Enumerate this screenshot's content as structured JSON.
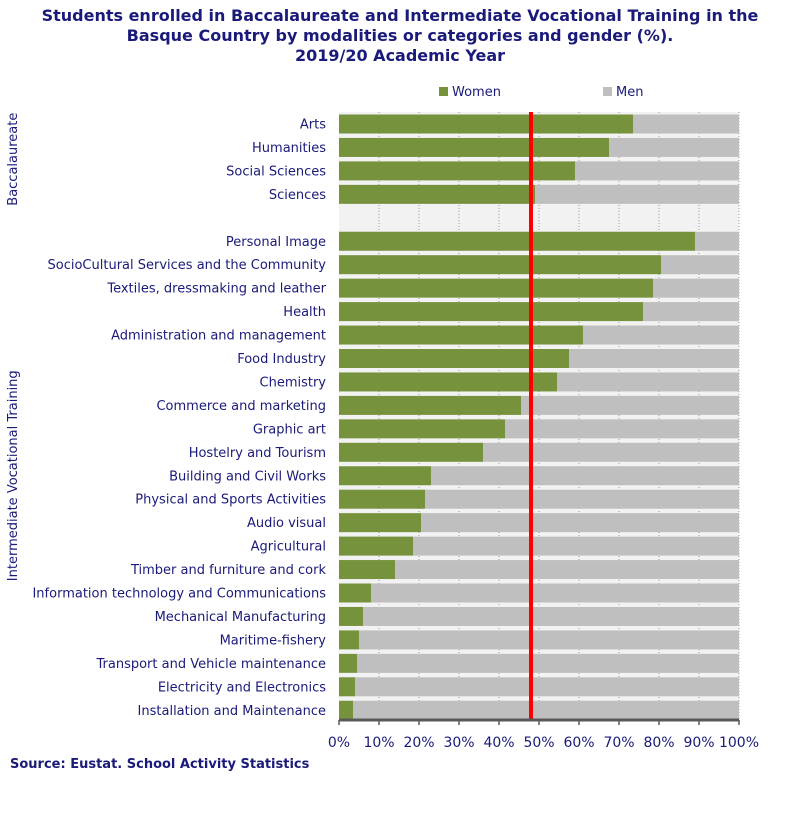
{
  "chart_data": {
    "type": "bar",
    "stacked": true,
    "orientation": "horizontal",
    "title_lines": [
      "Students enrolled in Baccalaureate and Intermediate Vocational Training in the",
      "Basque Country by modalities or categories and gender (%).",
      "2019/20 Academic Year"
    ],
    "legend": [
      "Women",
      "Men"
    ],
    "legend_position": "top",
    "groups": [
      {
        "name": "Baccalaureate",
        "categories": [
          "Arts",
          "Humanities",
          "Social Sciences",
          "Sciences"
        ],
        "women": [
          73.5,
          67.5,
          59,
          49
        ]
      },
      {
        "name": "Intermediate Vocational Training",
        "categories": [
          "Personal Image",
          "SocioCultural Services and the Community",
          "Textiles, dressmaking and leather",
          "Health",
          "Administration and management",
          "Food Industry",
          "Chemistry",
          "Commerce and marketing",
          "Graphic art",
          "Hostelry and Tourism",
          "Building and Civil Works",
          "Physical and Sports Activities",
          "Audio visual",
          "Agricultural",
          "Timber and furniture and cork",
          "Information technology and Communications",
          "Mechanical Manufacturing",
          "Maritime-fishery",
          "Transport and Vehicle maintenance",
          "Electricity and Electronics",
          "Installation and Maintenance"
        ],
        "women": [
          89,
          80.5,
          78.5,
          76,
          61,
          57.5,
          54.5,
          45.5,
          41.5,
          36,
          23,
          21.5,
          20.5,
          18.5,
          14,
          8,
          6,
          5,
          4.5,
          4,
          3.5
        ]
      }
    ],
    "reference_line": 48,
    "xlim": [
      0,
      100
    ],
    "xticks": [
      "0%",
      "10%",
      "20%",
      "30%",
      "40%",
      "50%",
      "60%",
      "70%",
      "80%",
      "90%",
      "100%"
    ],
    "colors": {
      "women": "#76923c",
      "men": "#bfbfbf",
      "reference": "#ff0000",
      "text": "#1a1a7a",
      "plot_bg": "#f2f2f2",
      "axis": "#595959"
    }
  },
  "source": "Source: Eustat. School Activity Statistics"
}
